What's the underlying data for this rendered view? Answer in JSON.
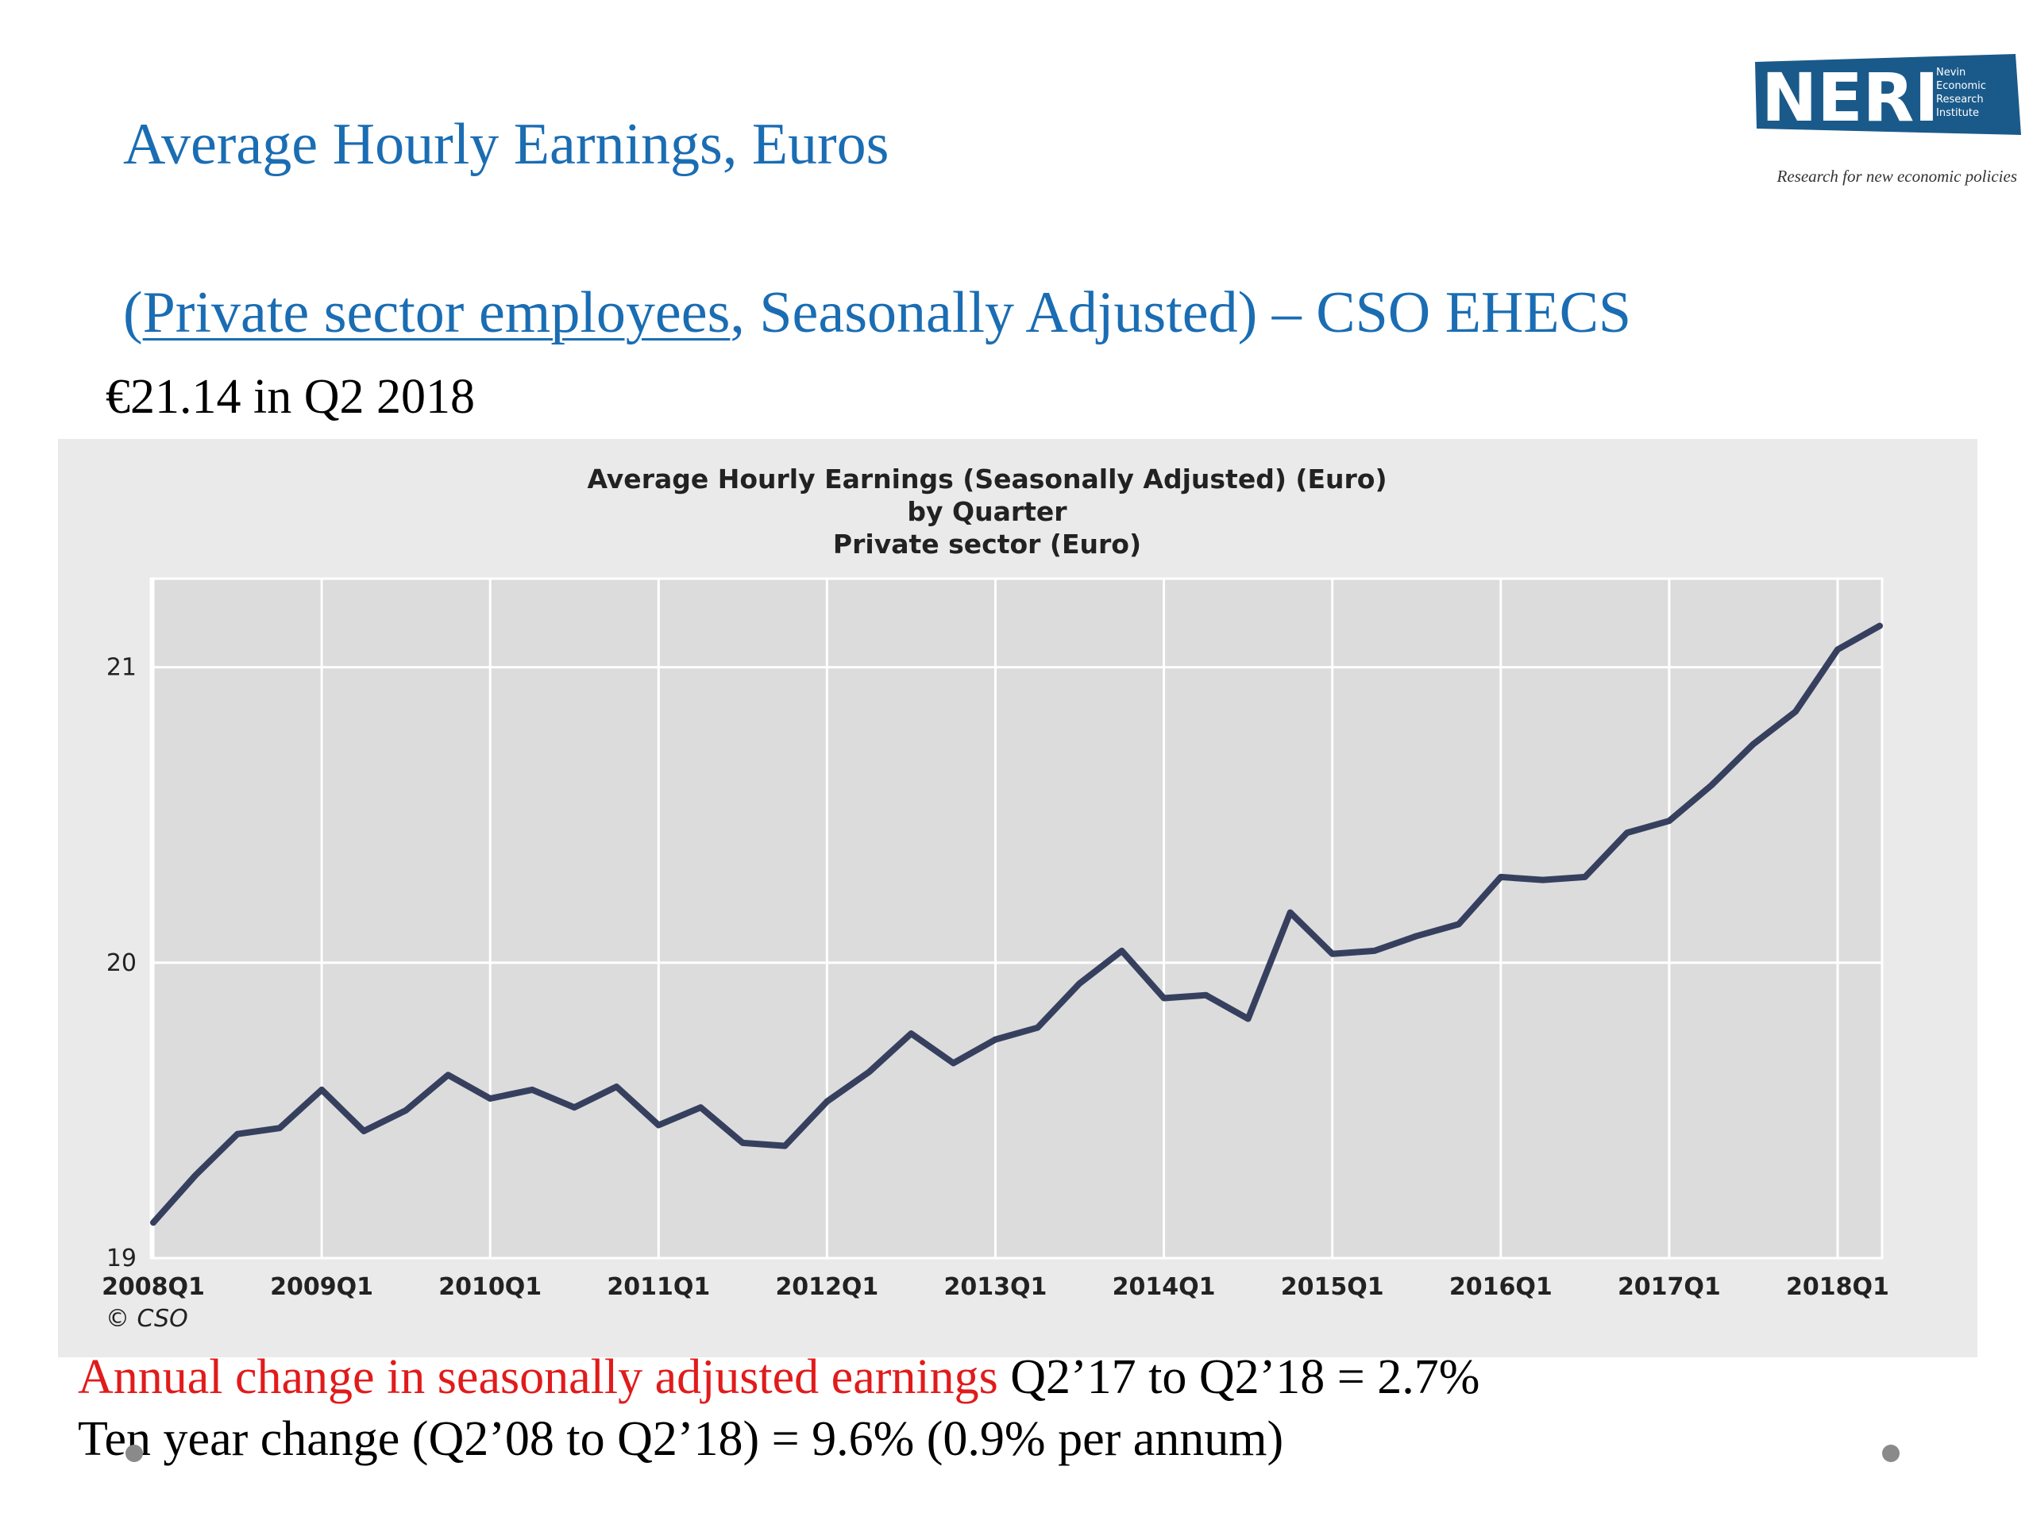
{
  "slide": {
    "title": "Average Hourly Earnings, Euros",
    "subtitle_open": "(",
    "subtitle_link": "Private sector employees",
    "subtitle_rest": ", Seasonally Adjusted) – CSO EHECS",
    "headline": "€21.14 in Q2 2018",
    "note_red": "Annual change in seasonally adjusted earnings",
    "note_rest": " Q2’17 to Q2’18 = 2.7%",
    "note2": "Ten year change (Q2’08 to Q2’18) = 9.6% (0.9% per annum)"
  },
  "logo": {
    "mark": "NERI",
    "lines": [
      "Nevin",
      "Economic",
      "Research",
      "Institute"
    ],
    "tagline": "Research for new economic policies",
    "color": "#1a5a8a"
  },
  "chart_data": {
    "type": "line",
    "title_lines": [
      "Average Hourly Earnings (Seasonally Adjusted) (Euro)",
      "by Quarter",
      "Private sector (Euro)"
    ],
    "source": "© CSO",
    "y_ticks": [
      19,
      20,
      21
    ],
    "ylim": [
      19,
      21.3
    ],
    "x_ticks": [
      "2008Q1",
      "2009Q1",
      "2010Q1",
      "2011Q1",
      "2012Q1",
      "2013Q1",
      "2014Q1",
      "2015Q1",
      "2016Q1",
      "2017Q1",
      "2018Q1"
    ],
    "line_color": "#36405e",
    "series": [
      {
        "x": [
          "2008Q1",
          "2008Q2",
          "2008Q3",
          "2008Q4",
          "2009Q1",
          "2009Q2",
          "2009Q3",
          "2009Q4",
          "2010Q1",
          "2010Q2",
          "2010Q3",
          "2010Q4",
          "2011Q1",
          "2011Q2",
          "2011Q3",
          "2011Q4",
          "2012Q1",
          "2012Q2",
          "2012Q3",
          "2012Q4",
          "2013Q1",
          "2013Q2",
          "2013Q3",
          "2013Q4",
          "2014Q1",
          "2014Q2",
          "2014Q3",
          "2014Q4",
          "2015Q1",
          "2015Q2",
          "2015Q3",
          "2015Q4",
          "2016Q1",
          "2016Q2",
          "2016Q3",
          "2016Q4",
          "2017Q1",
          "2017Q2",
          "2017Q3",
          "2017Q4",
          "2018Q1",
          "2018Q2"
        ],
        "values": [
          19.12,
          19.28,
          19.42,
          19.44,
          19.57,
          19.43,
          19.5,
          19.62,
          19.54,
          19.57,
          19.51,
          19.58,
          19.45,
          19.51,
          19.39,
          19.38,
          19.53,
          19.63,
          19.76,
          19.66,
          19.74,
          19.78,
          19.93,
          20.04,
          19.88,
          19.89,
          19.81,
          20.17,
          20.03,
          20.04,
          20.09,
          20.13,
          20.29,
          20.28,
          20.29,
          20.44,
          20.48,
          20.6,
          20.74,
          20.85,
          21.06,
          21.14
        ]
      }
    ]
  }
}
